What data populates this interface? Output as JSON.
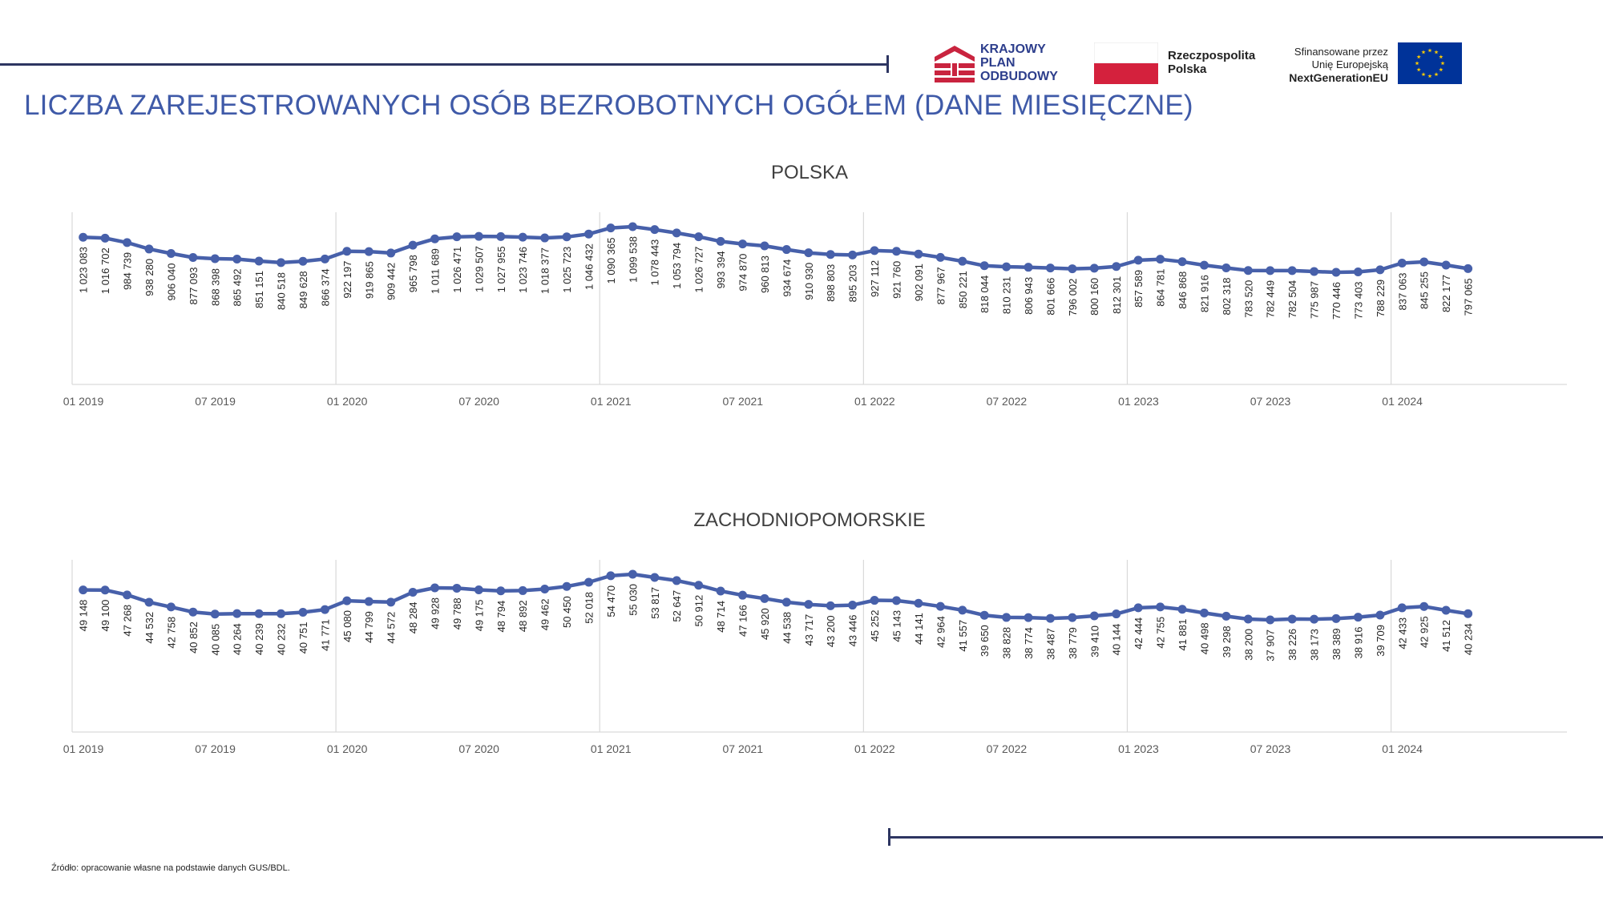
{
  "header": {
    "title": "LICZBA ZAREJESTROWANYCH OSÓB BEZROBOTNYCH OGÓŁEM (DANE MIESIĘCZNE)",
    "logos": {
      "kpo": {
        "lines": [
          "KRAJOWY",
          "PLAN",
          "ODBUDOWY"
        ],
        "icon": "kpo-logo-icon"
      },
      "rp": {
        "lines": [
          "Rzeczpospolita",
          "Polska"
        ],
        "icon": "polish-flag-icon"
      },
      "eu": {
        "lines": [
          "Sfinansowane przez",
          "Unię Europejską",
          "NextGenerationEU"
        ],
        "icon": "eu-flag-icon"
      }
    }
  },
  "footer": {
    "source": "Źródło: opracowanie własne na podstawie danych GUS/BDL."
  },
  "colors": {
    "series": "#4760aa",
    "title": "#3f5aa8",
    "rule": "#2d3561",
    "grid": "#d9d9d9",
    "axis_text": "#595959"
  },
  "chart_data": [
    {
      "type": "line",
      "title": "POLSKA",
      "x_ticks": [
        "01 2019",
        "07 2019",
        "01 2020",
        "07 2020",
        "01 2021",
        "07 2021",
        "01 2022",
        "07 2022",
        "01 2023",
        "07 2023",
        "01 2024"
      ],
      "x_start": "2019-01",
      "x_end": "2024-04",
      "grid": "vertical lines at each January",
      "values": [
        1023083,
        1016702,
        984739,
        938280,
        906040,
        877093,
        868398,
        865492,
        851151,
        840518,
        849628,
        866374,
        922197,
        919865,
        909442,
        965798,
        1011689,
        1026471,
        1029507,
        1027955,
        1023746,
        1018377,
        1025723,
        1046432,
        1090365,
        1099538,
        1078443,
        1053794,
        1026727,
        993394,
        974870,
        960813,
        934674,
        910930,
        898803,
        895203,
        927112,
        921760,
        902091,
        877967,
        850221,
        818044,
        810231,
        806943,
        801666,
        796002,
        800160,
        812301,
        857589,
        864781,
        846868,
        821916,
        802318,
        783520,
        782449,
        782504,
        775987,
        770446,
        773403,
        788229,
        837063,
        845255,
        822177,
        797065
      ],
      "labels": [
        "1 023 083",
        "1 016 702",
        "984 739",
        "938 280",
        "906 040",
        "877 093",
        "868 398",
        "865 492",
        "851 151",
        "840 518",
        "849 628",
        "866 374",
        "922 197",
        "919 865",
        "909 442",
        "965 798",
        "1 011 689",
        "1 026 471",
        "1 029 507",
        "1 027 955",
        "1 023 746",
        "1 018 377",
        "1 025 723",
        "1 046 432",
        "1 090 365",
        "1 099 538",
        "1 078 443",
        "1 053 794",
        "1 026 727",
        "993 394",
        "974 870",
        "960 813",
        "934 674",
        "910 930",
        "898 803",
        "895 203",
        "927 112",
        "921 760",
        "902 091",
        "877 967",
        "850 221",
        "818 044",
        "810 231",
        "806 943",
        "801 666",
        "796 002",
        "800 160",
        "812 301",
        "857 589",
        "864 781",
        "846 868",
        "821 916",
        "802 318",
        "783 520",
        "782 449",
        "782 504",
        "775 987",
        "770 446",
        "773 403",
        "788 229",
        "837 063",
        "845 255",
        "822 177",
        "797 065"
      ]
    },
    {
      "type": "line",
      "title": "ZACHODNIOPOMORSKIE",
      "x_ticks": [
        "01 2019",
        "07 2019",
        "01 2020",
        "07 2020",
        "01 2021",
        "07 2021",
        "01 2022",
        "07 2022",
        "01 2023",
        "07 2023",
        "01 2024"
      ],
      "x_start": "2019-01",
      "x_end": "2024-04",
      "grid": "vertical lines at each January",
      "values": [
        49148,
        49100,
        47268,
        44532,
        42758,
        40852,
        40085,
        40264,
        40239,
        40232,
        40751,
        41771,
        45080,
        44799,
        44572,
        48284,
        49928,
        49788,
        49175,
        48794,
        48892,
        49462,
        50450,
        52018,
        54470,
        55030,
        53817,
        52647,
        50912,
        48714,
        47166,
        45920,
        44538,
        43717,
        43200,
        43446,
        45252,
        45143,
        44141,
        42964,
        41557,
        39650,
        38828,
        38774,
        38487,
        38779,
        39410,
        40144,
        42444,
        42755,
        41881,
        40498,
        39298,
        38200,
        37907,
        38226,
        38173,
        38389,
        38916,
        39709,
        42433,
        42925,
        41512,
        40234
      ],
      "labels": [
        "49 148",
        "49 100",
        "47 268",
        "44 532",
        "42 758",
        "40 852",
        "40 085",
        "40 264",
        "40 239",
        "40 232",
        "40 751",
        "41 771",
        "45 080",
        "44 799",
        "44 572",
        "48 284",
        "49 928",
        "49 788",
        "49 175",
        "48 794",
        "48 892",
        "49 462",
        "50 450",
        "52 018",
        "54 470",
        "55 030",
        "53 817",
        "52 647",
        "50 912",
        "48 714",
        "47 166",
        "45 920",
        "44 538",
        "43 717",
        "43 200",
        "43 446",
        "45 252",
        "45 143",
        "44 141",
        "42 964",
        "41 557",
        "39 650",
        "38 828",
        "38 774",
        "38 487",
        "38 779",
        "39 410",
        "40 144",
        "42 444",
        "42 755",
        "41 881",
        "40 498",
        "39 298",
        "38 200",
        "37 907",
        "38 226",
        "38 173",
        "38 389",
        "38 916",
        "39 709",
        "42 433",
        "42 925",
        "41 512",
        "40 234"
      ]
    }
  ]
}
